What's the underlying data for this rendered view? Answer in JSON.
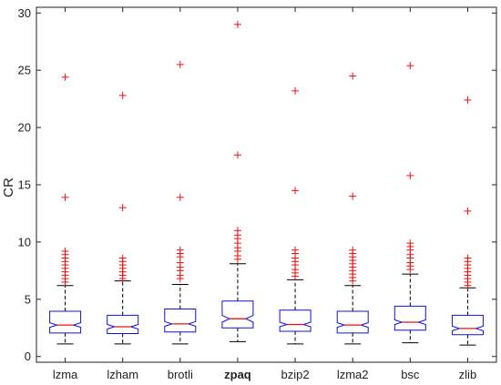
{
  "chart_data": {
    "type": "boxplot",
    "title": "",
    "xlabel": "",
    "ylabel": "CR",
    "ylim": [
      -0.5,
      30.5
    ],
    "yticks": [
      0,
      5,
      10,
      15,
      20,
      25,
      30
    ],
    "grid": false,
    "legend": "none",
    "notched": true,
    "colors": {
      "box": "#1010e0",
      "median": "#ee1111",
      "whisker": "#000000",
      "outlier": "#ee1111",
      "axis": "#222222"
    },
    "categories": [
      "lzma",
      "lzham",
      "brotli",
      "zpaq",
      "bzip2",
      "lzma2",
      "bsc",
      "zlib"
    ],
    "bold_categories": [
      "zpaq"
    ],
    "boxes": [
      {
        "name": "lzma",
        "whisker_low": 1.1,
        "q1": 2.05,
        "median": 2.75,
        "q3": 3.95,
        "whisker_high": 6.2,
        "notch_low": 2.55,
        "notch_high": 2.95,
        "outliers": [
          24.4,
          13.9,
          9.2,
          8.9,
          8.6,
          8.3,
          8.0,
          7.7,
          7.4,
          7.1,
          6.8,
          6.5
        ]
      },
      {
        "name": "lzham",
        "whisker_low": 1.1,
        "q1": 2.0,
        "median": 2.6,
        "q3": 3.6,
        "whisker_high": 6.6,
        "notch_low": 2.4,
        "notch_high": 2.8,
        "outliers": [
          22.8,
          13.0,
          8.6,
          8.3,
          8.0,
          7.7,
          7.4,
          7.1,
          6.8
        ]
      },
      {
        "name": "brotli",
        "whisker_low": 1.1,
        "q1": 2.15,
        "median": 2.85,
        "q3": 4.15,
        "whisker_high": 6.3,
        "notch_low": 2.65,
        "notch_high": 3.05,
        "outliers": [
          25.5,
          13.9,
          9.3,
          9.0,
          8.7,
          8.2,
          7.8,
          7.5,
          7.1,
          6.8
        ]
      },
      {
        "name": "zpaq",
        "whisker_low": 1.3,
        "q1": 2.5,
        "median": 3.3,
        "q3": 4.85,
        "whisker_high": 8.1,
        "notch_low": 3.0,
        "notch_high": 3.6,
        "outliers": [
          29.0,
          17.6,
          11.0,
          10.6,
          10.3,
          9.9,
          9.5,
          9.2,
          8.8,
          8.5
        ]
      },
      {
        "name": "bzip2",
        "whisker_low": 1.1,
        "q1": 2.2,
        "median": 2.8,
        "q3": 4.05,
        "whisker_high": 6.7,
        "notch_low": 2.6,
        "notch_high": 3.0,
        "outliers": [
          23.2,
          14.5,
          9.3,
          9.0,
          8.6,
          8.3,
          8.0,
          7.6,
          7.3,
          7.0
        ]
      },
      {
        "name": "lzma2",
        "whisker_low": 1.1,
        "q1": 2.05,
        "median": 2.75,
        "q3": 3.95,
        "whisker_high": 6.2,
        "notch_low": 2.55,
        "notch_high": 2.95,
        "outliers": [
          24.5,
          14.0,
          9.3,
          9.0,
          8.7,
          8.4,
          8.1,
          7.8,
          7.5,
          7.2,
          6.9,
          6.6
        ]
      },
      {
        "name": "bsc",
        "whisker_low": 1.2,
        "q1": 2.3,
        "median": 3.0,
        "q3": 4.4,
        "whisker_high": 7.2,
        "notch_low": 2.8,
        "notch_high": 3.2,
        "outliers": [
          25.4,
          15.8,
          9.9,
          9.6,
          9.3,
          8.9,
          8.6,
          8.2,
          7.9,
          7.6
        ]
      },
      {
        "name": "zlib",
        "whisker_low": 1.0,
        "q1": 1.9,
        "median": 2.45,
        "q3": 3.6,
        "whisker_high": 6.0,
        "notch_low": 2.25,
        "notch_high": 2.65,
        "outliers": [
          22.4,
          12.7,
          8.6,
          8.3,
          8.0,
          7.7,
          7.4,
          7.1,
          6.8,
          6.5,
          6.2
        ]
      }
    ]
  }
}
